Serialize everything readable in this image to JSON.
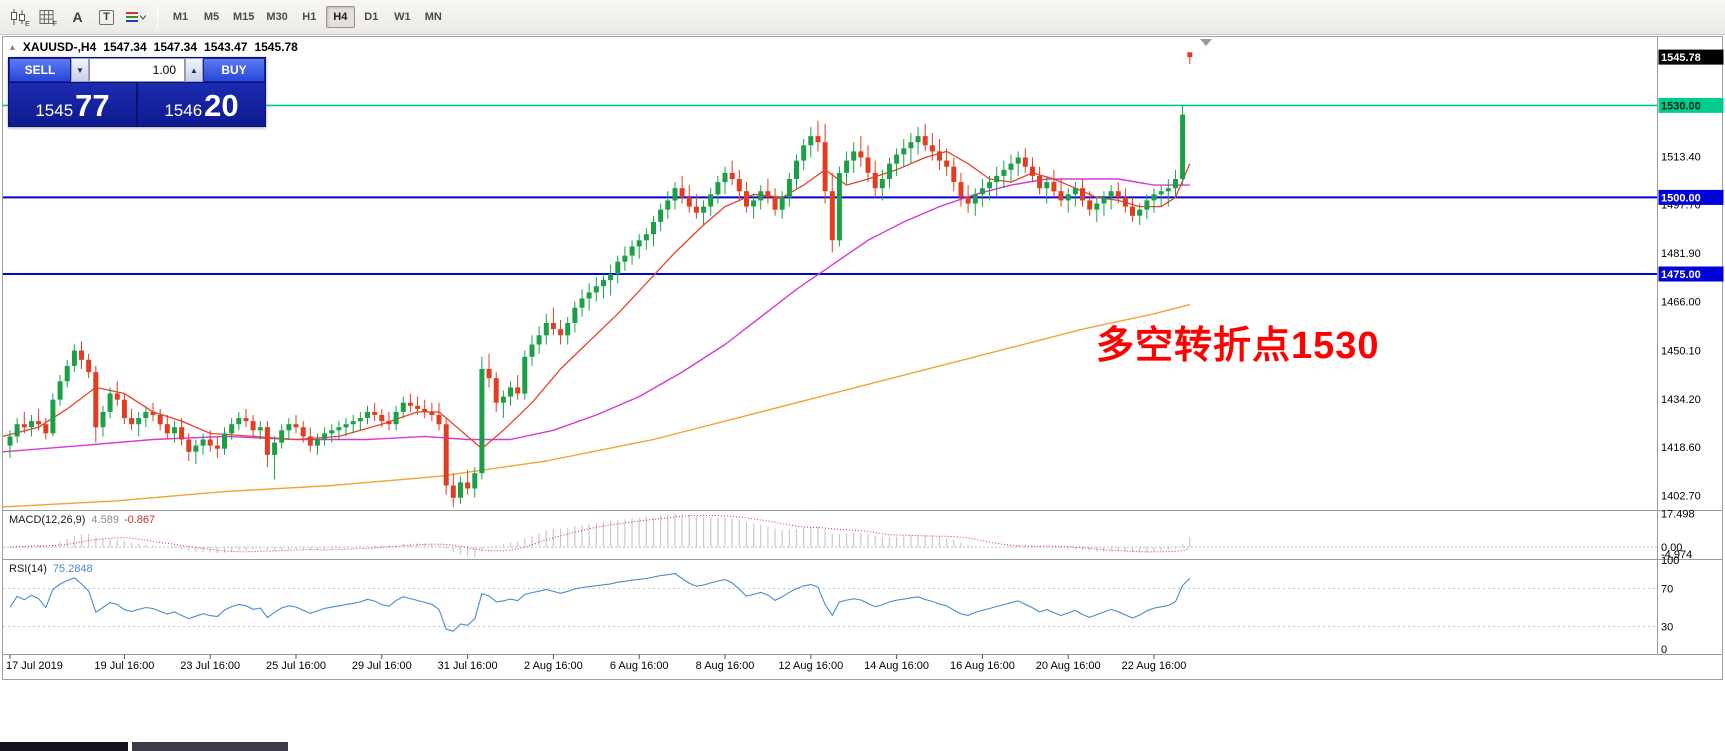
{
  "toolbar": {
    "icons": [
      {
        "name": "candlestick-chart-icon",
        "sub": "E"
      },
      {
        "name": "grid-icon",
        "sub": "F"
      },
      {
        "name": "text-tool-icon",
        "glyph": "A"
      },
      {
        "name": "frame-tool-icon",
        "glyph": "T"
      },
      {
        "name": "line-style-icon"
      }
    ],
    "timeframes": [
      "M1",
      "M5",
      "M15",
      "M30",
      "H1",
      "H4",
      "D1",
      "W1",
      "MN"
    ],
    "active_timeframe": "H4"
  },
  "chart_header": {
    "collapse_arrow": "▲",
    "symbol_period": "XAUUSD-,H4",
    "open": "1547.34",
    "high": "1547.34",
    "low": "1543.47",
    "close": "1545.78"
  },
  "one_click": {
    "sell_label": "SELL",
    "buy_label": "BUY",
    "lot": "1.00",
    "spin_down": "▼",
    "spin_up": "▲",
    "bid_main": "1545",
    "bid_pips": "77",
    "ask_main": "1546",
    "ask_pips": "20"
  },
  "annotation": {
    "text": "多空转折点1530",
    "color": "#ff0000"
  },
  "price_axis": {
    "ticks": [
      "1513.40",
      "1497.70",
      "1481.90",
      "1466.00",
      "1450.10",
      "1434.20",
      "1418.60",
      "1402.70"
    ],
    "badges": [
      {
        "name": "current-price-badge",
        "label": "1545.78",
        "price": 1545.78,
        "bg": "#000000",
        "fg": "#ffffff"
      },
      {
        "name": "hline-1530-badge",
        "label": "1530.00",
        "price": 1530.0,
        "bg": "#00cc8f",
        "fg": "#00241a"
      },
      {
        "name": "hline-1500-badge",
        "label": "1500.00",
        "price": 1500.0,
        "bg": "#0000d8",
        "fg": "#ffffff"
      },
      {
        "name": "hline-1475-badge",
        "label": "1475.00",
        "price": 1475.0,
        "bg": "#0000d8",
        "fg": "#ffffff"
      }
    ]
  },
  "hlines": [
    {
      "price": 1530.0,
      "color": "#00cc8f",
      "width": 1.6
    },
    {
      "price": 1500.0,
      "color": "#0000d8",
      "width": 2
    },
    {
      "price": 1475.0,
      "color": "#0000d8",
      "width": 2
    }
  ],
  "macd_panel": {
    "label": "MACD(12,26,9)",
    "value_main": "4.589",
    "value_signal": "-0.867",
    "axis": [
      "17.498",
      "0.00",
      "-4.974"
    ]
  },
  "rsi_panel": {
    "label": "RSI(14)",
    "value": "75.2848",
    "axis": [
      "100",
      "70",
      "30",
      "0"
    ]
  },
  "time_axis": [
    {
      "label": "17 Jul 2019",
      "index": 0
    },
    {
      "label": "19 Jul 16:00",
      "index": 16
    },
    {
      "label": "23 Jul 16:00",
      "index": 28
    },
    {
      "label": "25 Jul 16:00",
      "index": 40
    },
    {
      "label": "29 Jul 16:00",
      "index": 52
    },
    {
      "label": "31 Jul 16:00",
      "index": 64
    },
    {
      "label": "2 Aug 16:00",
      "index": 76
    },
    {
      "label": "6 Aug 16:00",
      "index": 88
    },
    {
      "label": "8 Aug 16:00",
      "index": 100
    },
    {
      "label": "12 Aug 16:00",
      "index": 112
    },
    {
      "label": "14 Aug 16:00",
      "index": 124
    },
    {
      "label": "16 Aug 16:00",
      "index": 136
    },
    {
      "label": "20 Aug 16:00",
      "index": 148
    },
    {
      "label": "22 Aug 16:00",
      "index": 160
    }
  ],
  "chart_data": {
    "type": "candlestick",
    "symbol": "XAUUSD-",
    "period": "H4",
    "ylim": [
      1398,
      1552
    ],
    "candles": [
      [
        1419,
        1424,
        1415,
        1422
      ],
      [
        1422,
        1428,
        1420,
        1426
      ],
      [
        1426,
        1430,
        1423,
        1425
      ],
      [
        1425,
        1429,
        1422,
        1427
      ],
      [
        1427,
        1431,
        1424,
        1426
      ],
      [
        1426,
        1428,
        1421,
        1423
      ],
      [
        1423,
        1436,
        1422,
        1434
      ],
      [
        1434,
        1442,
        1432,
        1440
      ],
      [
        1440,
        1447,
        1438,
        1445
      ],
      [
        1445,
        1452,
        1443,
        1450
      ],
      [
        1450,
        1453,
        1444,
        1447
      ],
      [
        1447,
        1449,
        1441,
        1443
      ],
      [
        1443,
        1445,
        1420,
        1425
      ],
      [
        1425,
        1432,
        1422,
        1430
      ],
      [
        1430,
        1438,
        1428,
        1436
      ],
      [
        1436,
        1440,
        1432,
        1434
      ],
      [
        1434,
        1436,
        1426,
        1428
      ],
      [
        1428,
        1431,
        1424,
        1426
      ],
      [
        1426,
        1430,
        1422,
        1428
      ],
      [
        1428,
        1432,
        1425,
        1430
      ],
      [
        1430,
        1433,
        1427,
        1429
      ],
      [
        1429,
        1431,
        1424,
        1426
      ],
      [
        1426,
        1429,
        1421,
        1423
      ],
      [
        1423,
        1427,
        1420,
        1425
      ],
      [
        1425,
        1428,
        1419,
        1421
      ],
      [
        1421,
        1423,
        1414,
        1417
      ],
      [
        1417,
        1421,
        1413,
        1419
      ],
      [
        1419,
        1423,
        1416,
        1421
      ],
      [
        1421,
        1424,
        1417,
        1419
      ],
      [
        1419,
        1422,
        1415,
        1418
      ],
      [
        1418,
        1425,
        1416,
        1423
      ],
      [
        1423,
        1428,
        1421,
        1426
      ],
      [
        1426,
        1430,
        1424,
        1428
      ],
      [
        1428,
        1431,
        1425,
        1427
      ],
      [
        1427,
        1429,
        1422,
        1424
      ],
      [
        1424,
        1427,
        1421,
        1425
      ],
      [
        1425,
        1427,
        1412,
        1416
      ],
      [
        1416,
        1422,
        1408,
        1420
      ],
      [
        1420,
        1426,
        1418,
        1424
      ],
      [
        1424,
        1428,
        1421,
        1426
      ],
      [
        1426,
        1429,
        1423,
        1425
      ],
      [
        1425,
        1427,
        1420,
        1422
      ],
      [
        1422,
        1425,
        1417,
        1419
      ],
      [
        1419,
        1423,
        1416,
        1421
      ],
      [
        1421,
        1425,
        1419,
        1423
      ],
      [
        1423,
        1426,
        1420,
        1424
      ],
      [
        1424,
        1427,
        1421,
        1425
      ],
      [
        1425,
        1428,
        1422,
        1426
      ],
      [
        1426,
        1429,
        1423,
        1427
      ],
      [
        1427,
        1430,
        1424,
        1428
      ],
      [
        1428,
        1432,
        1426,
        1430
      ],
      [
        1430,
        1433,
        1427,
        1429
      ],
      [
        1429,
        1431,
        1425,
        1427
      ],
      [
        1427,
        1430,
        1424,
        1426
      ],
      [
        1426,
        1432,
        1424,
        1430
      ],
      [
        1430,
        1435,
        1428,
        1433
      ],
      [
        1433,
        1436,
        1430,
        1432
      ],
      [
        1432,
        1435,
        1429,
        1431
      ],
      [
        1431,
        1434,
        1428,
        1430
      ],
      [
        1430,
        1433,
        1427,
        1429
      ],
      [
        1429,
        1433,
        1424,
        1426
      ],
      [
        1426,
        1428,
        1403,
        1406
      ],
      [
        1406,
        1410,
        1399,
        1402
      ],
      [
        1402,
        1409,
        1400,
        1407
      ],
      [
        1407,
        1411,
        1403,
        1405
      ],
      [
        1405,
        1412,
        1402,
        1410
      ],
      [
        1410,
        1448,
        1408,
        1444
      ],
      [
        1444,
        1449,
        1438,
        1441
      ],
      [
        1441,
        1443,
        1430,
        1433
      ],
      [
        1433,
        1437,
        1428,
        1435
      ],
      [
        1435,
        1440,
        1432,
        1438
      ],
      [
        1438,
        1442,
        1434,
        1436
      ],
      [
        1436,
        1450,
        1434,
        1448
      ],
      [
        1448,
        1455,
        1445,
        1452
      ],
      [
        1452,
        1458,
        1449,
        1455
      ],
      [
        1455,
        1462,
        1452,
        1459
      ],
      [
        1459,
        1464,
        1455,
        1457
      ],
      [
        1457,
        1460,
        1452,
        1455
      ],
      [
        1455,
        1461,
        1452,
        1459
      ],
      [
        1459,
        1466,
        1456,
        1464
      ],
      [
        1464,
        1470,
        1461,
        1467
      ],
      [
        1467,
        1472,
        1463,
        1469
      ],
      [
        1469,
        1474,
        1466,
        1471
      ],
      [
        1471,
        1475,
        1467,
        1473
      ],
      [
        1473,
        1478,
        1468,
        1475
      ],
      [
        1475,
        1481,
        1472,
        1479
      ],
      [
        1479,
        1484,
        1476,
        1481
      ],
      [
        1481,
        1486,
        1478,
        1484
      ],
      [
        1484,
        1488,
        1480,
        1486
      ],
      [
        1486,
        1490,
        1483,
        1488
      ],
      [
        1488,
        1494,
        1484,
        1492
      ],
      [
        1492,
        1498,
        1489,
        1496
      ],
      [
        1496,
        1502,
        1493,
        1499
      ],
      [
        1499,
        1505,
        1496,
        1503
      ],
      [
        1503,
        1507,
        1498,
        1500
      ],
      [
        1500,
        1504,
        1495,
        1497
      ],
      [
        1497,
        1501,
        1493,
        1495
      ],
      [
        1495,
        1499,
        1491,
        1497
      ],
      [
        1497,
        1503,
        1494,
        1501
      ],
      [
        1501,
        1507,
        1498,
        1505
      ],
      [
        1505,
        1510,
        1501,
        1508
      ],
      [
        1508,
        1512,
        1504,
        1506
      ],
      [
        1506,
        1509,
        1499,
        1502
      ],
      [
        1502,
        1505,
        1495,
        1497
      ],
      [
        1497,
        1501,
        1493,
        1499
      ],
      [
        1499,
        1504,
        1496,
        1502
      ],
      [
        1502,
        1506,
        1498,
        1500
      ],
      [
        1500,
        1503,
        1494,
        1496
      ],
      [
        1496,
        1502,
        1493,
        1500
      ],
      [
        1500,
        1508,
        1497,
        1506
      ],
      [
        1506,
        1514,
        1503,
        1512
      ],
      [
        1512,
        1519,
        1509,
        1517
      ],
      [
        1517,
        1523,
        1513,
        1520
      ],
      [
        1520,
        1525,
        1515,
        1518
      ],
      [
        1518,
        1524,
        1498,
        1502
      ],
      [
        1502,
        1508,
        1482,
        1486
      ],
      [
        1486,
        1510,
        1484,
        1508
      ],
      [
        1508,
        1515,
        1504,
        1512
      ],
      [
        1512,
        1518,
        1508,
        1515
      ],
      [
        1515,
        1520,
        1510,
        1513
      ],
      [
        1513,
        1517,
        1505,
        1508
      ],
      [
        1508,
        1512,
        1500,
        1503
      ],
      [
        1503,
        1509,
        1499,
        1506
      ],
      [
        1506,
        1513,
        1503,
        1511
      ],
      [
        1511,
        1516,
        1507,
        1514
      ],
      [
        1514,
        1519,
        1510,
        1516
      ],
      [
        1516,
        1521,
        1511,
        1518
      ],
      [
        1518,
        1523,
        1514,
        1520
      ],
      [
        1520,
        1524,
        1515,
        1517
      ],
      [
        1517,
        1521,
        1512,
        1515
      ],
      [
        1515,
        1519,
        1509,
        1512
      ],
      [
        1512,
        1516,
        1507,
        1510
      ],
      [
        1510,
        1513,
        1502,
        1505
      ],
      [
        1505,
        1508,
        1497,
        1500
      ],
      [
        1500,
        1504,
        1495,
        1498
      ],
      [
        1498,
        1503,
        1494,
        1501
      ],
      [
        1501,
        1506,
        1497,
        1503
      ],
      [
        1503,
        1507,
        1499,
        1505
      ],
      [
        1505,
        1510,
        1500,
        1507
      ],
      [
        1507,
        1512,
        1503,
        1509
      ],
      [
        1509,
        1514,
        1505,
        1511
      ],
      [
        1511,
        1515,
        1507,
        1513
      ],
      [
        1513,
        1516,
        1508,
        1510
      ],
      [
        1510,
        1513,
        1505,
        1507
      ],
      [
        1507,
        1510,
        1501,
        1503
      ],
      [
        1503,
        1507,
        1498,
        1505
      ],
      [
        1505,
        1509,
        1500,
        1502
      ],
      [
        1502,
        1506,
        1497,
        1499
      ],
      [
        1499,
        1503,
        1495,
        1501
      ],
      [
        1501,
        1505,
        1497,
        1503
      ],
      [
        1503,
        1506,
        1497,
        1499
      ],
      [
        1499,
        1502,
        1494,
        1496
      ],
      [
        1496,
        1500,
        1492,
        1498
      ],
      [
        1498,
        1502,
        1494,
        1500
      ],
      [
        1500,
        1504,
        1496,
        1502
      ],
      [
        1502,
        1505,
        1498,
        1500
      ],
      [
        1500,
        1503,
        1495,
        1497
      ],
      [
        1497,
        1500,
        1492,
        1494
      ],
      [
        1494,
        1498,
        1491,
        1496
      ],
      [
        1496,
        1501,
        1493,
        1499
      ],
      [
        1499,
        1503,
        1495,
        1501
      ],
      [
        1501,
        1504,
        1497,
        1502
      ],
      [
        1502,
        1506,
        1497,
        1503
      ],
      [
        1503,
        1509,
        1500,
        1506
      ],
      [
        1506,
        1530,
        1504,
        1527
      ],
      [
        1547.34,
        1547.34,
        1543.47,
        1545.78
      ]
    ],
    "ma_fast_red": [
      [
        -1,
        1422
      ],
      [
        4,
        1425
      ],
      [
        8,
        1431
      ],
      [
        12,
        1438
      ],
      [
        16,
        1436
      ],
      [
        20,
        1430
      ],
      [
        24,
        1427
      ],
      [
        28,
        1423
      ],
      [
        34,
        1422
      ],
      [
        40,
        1421
      ],
      [
        46,
        1422
      ],
      [
        52,
        1426
      ],
      [
        57,
        1430
      ],
      [
        60,
        1430
      ],
      [
        63,
        1424
      ],
      [
        66,
        1418
      ],
      [
        69,
        1424
      ],
      [
        73,
        1433
      ],
      [
        77,
        1444
      ],
      [
        81,
        1453
      ],
      [
        85,
        1462
      ],
      [
        89,
        1472
      ],
      [
        93,
        1482
      ],
      [
        97,
        1491
      ],
      [
        100,
        1497
      ],
      [
        104,
        1501
      ],
      [
        108,
        1500
      ],
      [
        111,
        1504
      ],
      [
        114,
        1509
      ],
      [
        117,
        1504
      ],
      [
        120,
        1506
      ],
      [
        124,
        1509
      ],
      [
        128,
        1513
      ],
      [
        131,
        1515
      ],
      [
        134,
        1511
      ],
      [
        137,
        1506
      ],
      [
        140,
        1505
      ],
      [
        143,
        1508
      ],
      [
        146,
        1506
      ],
      [
        149,
        1503
      ],
      [
        152,
        1500
      ],
      [
        155,
        1499
      ],
      [
        158,
        1497
      ],
      [
        161,
        1497
      ],
      [
        163,
        1500
      ],
      [
        165,
        1511
      ]
    ],
    "ma_mid_magenta": [
      [
        -1,
        1417
      ],
      [
        10,
        1419
      ],
      [
        20,
        1421
      ],
      [
        30,
        1422
      ],
      [
        40,
        1421
      ],
      [
        50,
        1421
      ],
      [
        58,
        1422
      ],
      [
        64,
        1421
      ],
      [
        70,
        1421
      ],
      [
        76,
        1424
      ],
      [
        82,
        1429
      ],
      [
        88,
        1435
      ],
      [
        94,
        1443
      ],
      [
        100,
        1452
      ],
      [
        105,
        1461
      ],
      [
        110,
        1470
      ],
      [
        115,
        1478
      ],
      [
        120,
        1486
      ],
      [
        125,
        1492
      ],
      [
        130,
        1497
      ],
      [
        135,
        1501
      ],
      [
        140,
        1504
      ],
      [
        145,
        1506
      ],
      [
        150,
        1506
      ],
      [
        155,
        1506
      ],
      [
        160,
        1504
      ],
      [
        165,
        1504
      ]
    ],
    "ma_slow_orange": [
      [
        -1,
        1399
      ],
      [
        15,
        1401
      ],
      [
        30,
        1404
      ],
      [
        45,
        1406
      ],
      [
        60,
        1409
      ],
      [
        75,
        1414
      ],
      [
        90,
        1421
      ],
      [
        105,
        1430
      ],
      [
        120,
        1439
      ],
      [
        135,
        1448
      ],
      [
        150,
        1457
      ],
      [
        160,
        1462
      ],
      [
        165,
        1465
      ]
    ]
  },
  "colors": {
    "candle_up": "#1ba048",
    "candle_down": "#e23c22",
    "ma_fast": "#e8432d",
    "ma_mid": "#d837d8",
    "ma_slow": "#f0a435",
    "macd_histogram": "#c9c9c9",
    "macd_signal": "#e03030",
    "rsi_line": "#4a8bd0",
    "hline_teal": "#00cc8f",
    "hline_blue": "#0000d8"
  }
}
